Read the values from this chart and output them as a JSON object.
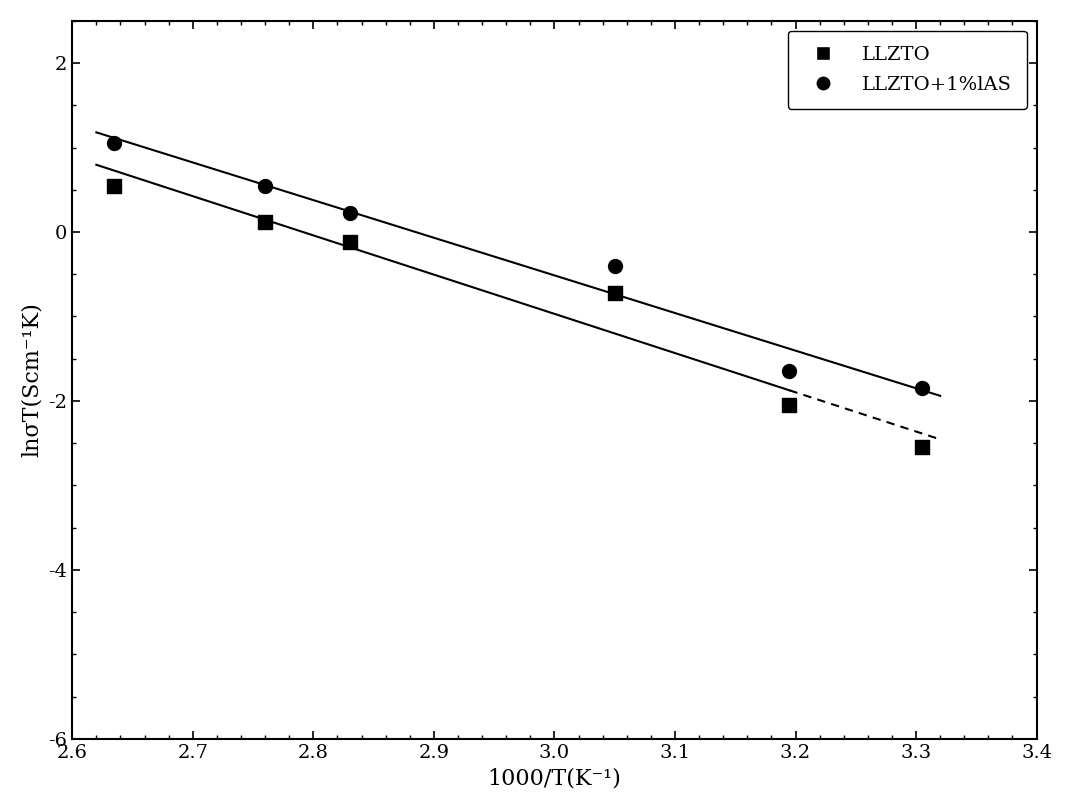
{
  "llzto_x": [
    2.635,
    2.76,
    2.83,
    3.05,
    3.195,
    3.305
  ],
  "llzto_y": [
    0.55,
    0.12,
    -0.12,
    -0.72,
    -2.05,
    -2.55
  ],
  "llzto_ias_x": [
    2.635,
    2.76,
    2.83,
    3.05,
    3.195,
    3.305
  ],
  "llzto_ias_y": [
    1.05,
    0.55,
    0.22,
    -0.4,
    -1.65,
    -1.85
  ],
  "xlabel": "1000/T(K⁻¹)",
  "ylabel": "lnσT(Scm⁻¹K)",
  "xlim": [
    2.6,
    3.4
  ],
  "ylim": [
    -6,
    2.5
  ],
  "xticks": [
    2.6,
    2.7,
    2.8,
    2.9,
    3.0,
    3.1,
    3.2,
    3.3,
    3.4
  ],
  "yticks": [
    -6,
    -4,
    -2,
    0,
    2
  ],
  "legend_labels": [
    "LLZTO",
    "LLZTO+1%lAS"
  ],
  "line_color": "#000000",
  "marker_color": "#000000",
  "background_color": "#ffffff",
  "label_fontsize": 16,
  "tick_fontsize": 14,
  "legend_fontsize": 14
}
